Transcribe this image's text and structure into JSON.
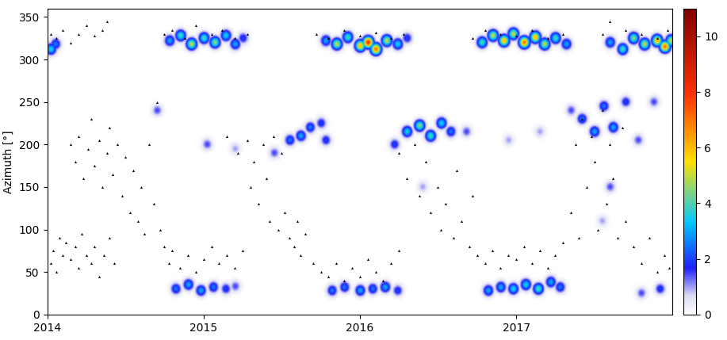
{
  "chart_data": {
    "type": "heatmap",
    "ylabel": "Azimuth [°]",
    "xlim": [
      2014,
      2018
    ],
    "xticks": [
      2014,
      2015,
      2016,
      2017
    ],
    "ylim": [
      0,
      360
    ],
    "yticks": [
      0,
      50,
      100,
      150,
      200,
      250,
      300,
      350
    ],
    "colorbar": {
      "lim": [
        0,
        11
      ],
      "ticks": [
        0,
        2,
        4,
        6,
        8,
        10
      ]
    },
    "cells": [
      [
        2014.02,
        312,
        3.5
      ],
      [
        2014.05,
        318,
        2.5
      ],
      [
        2014.78,
        322,
        3
      ],
      [
        2014.85,
        328,
        4
      ],
      [
        2014.92,
        318,
        5
      ],
      [
        2015.0,
        325,
        4
      ],
      [
        2015.07,
        320,
        4.5
      ],
      [
        2015.14,
        328,
        3.5
      ],
      [
        2015.2,
        318,
        3
      ],
      [
        2015.25,
        325,
        2
      ],
      [
        2015.78,
        322,
        3
      ],
      [
        2015.85,
        318,
        5
      ],
      [
        2015.92,
        326,
        4
      ],
      [
        2016.0,
        316,
        6
      ],
      [
        2016.05,
        320,
        8
      ],
      [
        2016.1,
        312,
        7
      ],
      [
        2016.17,
        322,
        5
      ],
      [
        2016.24,
        318,
        3.5
      ],
      [
        2016.3,
        325,
        2
      ],
      [
        2016.78,
        320,
        4
      ],
      [
        2016.85,
        328,
        5
      ],
      [
        2016.92,
        322,
        6
      ],
      [
        2016.98,
        330,
        5
      ],
      [
        2017.05,
        320,
        7
      ],
      [
        2017.12,
        326,
        6
      ],
      [
        2017.18,
        318,
        5
      ],
      [
        2017.25,
        325,
        4
      ],
      [
        2017.32,
        318,
        3
      ],
      [
        2017.6,
        320,
        3
      ],
      [
        2017.68,
        312,
        4
      ],
      [
        2017.75,
        325,
        4.5
      ],
      [
        2017.82,
        318,
        5
      ],
      [
        2017.9,
        322,
        6
      ],
      [
        2017.95,
        315,
        7
      ],
      [
        2017.99,
        322,
        5
      ],
      [
        2014.82,
        30,
        2.5
      ],
      [
        2014.9,
        35,
        3
      ],
      [
        2014.98,
        28,
        3
      ],
      [
        2015.06,
        32,
        2.5
      ],
      [
        2015.14,
        30,
        2
      ],
      [
        2015.2,
        33,
        1.5
      ],
      [
        2015.82,
        28,
        2.5
      ],
      [
        2015.9,
        32,
        2.5
      ],
      [
        2016.0,
        28,
        3
      ],
      [
        2016.08,
        30,
        2.5
      ],
      [
        2016.16,
        32,
        3
      ],
      [
        2016.24,
        28,
        2
      ],
      [
        2016.82,
        28,
        3
      ],
      [
        2016.9,
        32,
        3
      ],
      [
        2016.98,
        30,
        3.5
      ],
      [
        2017.06,
        35,
        3.5
      ],
      [
        2017.14,
        30,
        4
      ],
      [
        2017.22,
        38,
        3
      ],
      [
        2017.28,
        32,
        2.5
      ],
      [
        2017.8,
        25,
        1.5
      ],
      [
        2017.92,
        30,
        2
      ],
      [
        2014.7,
        240,
        1.5
      ],
      [
        2015.02,
        200,
        1.5
      ],
      [
        2015.2,
        195,
        1
      ],
      [
        2015.45,
        190,
        1.5
      ],
      [
        2015.55,
        205,
        2.5
      ],
      [
        2015.62,
        210,
        3
      ],
      [
        2015.68,
        220,
        2.5
      ],
      [
        2015.75,
        225,
        2
      ],
      [
        2015.78,
        205,
        2
      ],
      [
        2016.22,
        200,
        2
      ],
      [
        2016.3,
        215,
        3.5
      ],
      [
        2016.38,
        222,
        4.5
      ],
      [
        2016.45,
        210,
        4
      ],
      [
        2016.52,
        225,
        3.5
      ],
      [
        2016.58,
        215,
        2.5
      ],
      [
        2016.68,
        215,
        1.5
      ],
      [
        2016.95,
        205,
        1
      ],
      [
        2017.15,
        215,
        1
      ],
      [
        2017.35,
        240,
        1.5
      ],
      [
        2017.42,
        230,
        2.5
      ],
      [
        2017.5,
        215,
        3
      ],
      [
        2017.56,
        245,
        2.5
      ],
      [
        2017.62,
        220,
        3
      ],
      [
        2017.7,
        250,
        2
      ],
      [
        2017.78,
        205,
        1.5
      ],
      [
        2017.88,
        250,
        1.5
      ],
      [
        2017.6,
        150,
        1.5
      ],
      [
        2017.55,
        110,
        1
      ],
      [
        2016.4,
        150,
        1
      ]
    ],
    "series": [
      {
        "type": "scatter",
        "color": "#000000",
        "marker": "^",
        "points": [
          [
            2014.02,
            60
          ],
          [
            2014.04,
            75
          ],
          [
            2014.06,
            50
          ],
          [
            2014.08,
            90
          ],
          [
            2014.1,
            70
          ],
          [
            2014.12,
            85
          ],
          [
            2014.15,
            65
          ],
          [
            2014.18,
            80
          ],
          [
            2014.2,
            55
          ],
          [
            2014.22,
            95
          ],
          [
            2014.25,
            70
          ],
          [
            2014.28,
            60
          ],
          [
            2014.3,
            80
          ],
          [
            2014.33,
            45
          ],
          [
            2014.36,
            70
          ],
          [
            2014.4,
            90
          ],
          [
            2014.43,
            60
          ],
          [
            2014.02,
            330
          ],
          [
            2014.06,
            325
          ],
          [
            2014.1,
            335
          ],
          [
            2014.15,
            320
          ],
          [
            2014.2,
            330
          ],
          [
            2014.25,
            340
          ],
          [
            2014.3,
            328
          ],
          [
            2014.35,
            335
          ],
          [
            2014.38,
            345
          ],
          [
            2014.15,
            200
          ],
          [
            2014.18,
            180
          ],
          [
            2014.2,
            210
          ],
          [
            2014.23,
            160
          ],
          [
            2014.26,
            195
          ],
          [
            2014.28,
            230
          ],
          [
            2014.3,
            175
          ],
          [
            2014.33,
            205
          ],
          [
            2014.35,
            150
          ],
          [
            2014.38,
            190
          ],
          [
            2014.4,
            220
          ],
          [
            2014.42,
            165
          ],
          [
            2014.45,
            200
          ],
          [
            2014.48,
            140
          ],
          [
            2014.5,
            185
          ],
          [
            2014.53,
            120
          ],
          [
            2014.55,
            170
          ],
          [
            2014.58,
            110
          ],
          [
            2014.6,
            150
          ],
          [
            2014.62,
            95
          ],
          [
            2014.65,
            200
          ],
          [
            2014.68,
            130
          ],
          [
            2014.7,
            250
          ],
          [
            2014.72,
            100
          ],
          [
            2014.75,
            80
          ],
          [
            2014.78,
            60
          ],
          [
            2014.8,
            75
          ],
          [
            2014.85,
            55
          ],
          [
            2014.9,
            70
          ],
          [
            2014.95,
            50
          ],
          [
            2015.0,
            65
          ],
          [
            2015.05,
            80
          ],
          [
            2015.1,
            60
          ],
          [
            2015.15,
            70
          ],
          [
            2015.2,
            55
          ],
          [
            2015.25,
            75
          ],
          [
            2014.75,
            330
          ],
          [
            2014.8,
            335
          ],
          [
            2014.88,
            325
          ],
          [
            2014.95,
            340
          ],
          [
            2015.05,
            330
          ],
          [
            2015.12,
            335
          ],
          [
            2015.2,
            325
          ],
          [
            2015.28,
            330
          ],
          [
            2015.3,
            150
          ],
          [
            2015.32,
            180
          ],
          [
            2015.35,
            130
          ],
          [
            2015.38,
            200
          ],
          [
            2015.4,
            160
          ],
          [
            2015.42,
            110
          ],
          [
            2015.45,
            210
          ],
          [
            2015.48,
            100
          ],
          [
            2015.5,
            190
          ],
          [
            2015.52,
            120
          ],
          [
            2015.55,
            90
          ],
          [
            2015.58,
            80
          ],
          [
            2015.6,
            110
          ],
          [
            2015.62,
            70
          ],
          [
            2015.65,
            95
          ],
          [
            2015.7,
            60
          ],
          [
            2015.75,
            50
          ],
          [
            2015.15,
            210
          ],
          [
            2015.22,
            190
          ],
          [
            2015.28,
            205
          ],
          [
            2015.8,
            45
          ],
          [
            2015.85,
            60
          ],
          [
            2015.9,
            40
          ],
          [
            2015.95,
            55
          ],
          [
            2016.0,
            45
          ],
          [
            2016.05,
            65
          ],
          [
            2016.1,
            50
          ],
          [
            2016.15,
            40
          ],
          [
            2016.2,
            60
          ],
          [
            2016.25,
            75
          ],
          [
            2015.72,
            330
          ],
          [
            2015.8,
            325
          ],
          [
            2015.9,
            335
          ],
          [
            2016.0,
            328
          ],
          [
            2016.1,
            332
          ],
          [
            2016.2,
            325
          ],
          [
            2016.28,
            330
          ],
          [
            2016.25,
            190
          ],
          [
            2016.3,
            160
          ],
          [
            2016.35,
            200
          ],
          [
            2016.38,
            140
          ],
          [
            2016.42,
            180
          ],
          [
            2016.45,
            120
          ],
          [
            2016.5,
            150
          ],
          [
            2016.52,
            100
          ],
          [
            2016.55,
            130
          ],
          [
            2016.6,
            90
          ],
          [
            2016.62,
            170
          ],
          [
            2016.65,
            110
          ],
          [
            2016.7,
            80
          ],
          [
            2016.72,
            140
          ],
          [
            2016.75,
            70
          ],
          [
            2016.8,
            60
          ],
          [
            2016.85,
            75
          ],
          [
            2016.9,
            55
          ],
          [
            2016.95,
            70
          ],
          [
            2017.0,
            65
          ],
          [
            2017.05,
            80
          ],
          [
            2017.1,
            60
          ],
          [
            2017.15,
            75
          ],
          [
            2017.2,
            55
          ],
          [
            2017.25,
            70
          ],
          [
            2017.3,
            85
          ],
          [
            2016.72,
            325
          ],
          [
            2016.8,
            335
          ],
          [
            2016.9,
            330
          ],
          [
            2017.0,
            328
          ],
          [
            2017.1,
            335
          ],
          [
            2017.2,
            325
          ],
          [
            2017.3,
            330
          ],
          [
            2017.35,
            120
          ],
          [
            2017.38,
            200
          ],
          [
            2017.4,
            90
          ],
          [
            2017.42,
            230
          ],
          [
            2017.45,
            150
          ],
          [
            2017.48,
            210
          ],
          [
            2017.5,
            180
          ],
          [
            2017.52,
            100
          ],
          [
            2017.55,
            240
          ],
          [
            2017.58,
            130
          ],
          [
            2017.6,
            200
          ],
          [
            2017.62,
            160
          ],
          [
            2017.65,
            90
          ],
          [
            2017.68,
            220
          ],
          [
            2017.7,
            110
          ],
          [
            2017.75,
            80
          ],
          [
            2017.8,
            60
          ],
          [
            2017.85,
            90
          ],
          [
            2017.9,
            50
          ],
          [
            2017.95,
            70
          ],
          [
            2017.98,
            55
          ],
          [
            2017.55,
            330
          ],
          [
            2017.6,
            345
          ],
          [
            2017.7,
            335
          ],
          [
            2017.8,
            330
          ],
          [
            2017.9,
            325
          ],
          [
            2017.97,
            335
          ]
        ]
      }
    ]
  }
}
